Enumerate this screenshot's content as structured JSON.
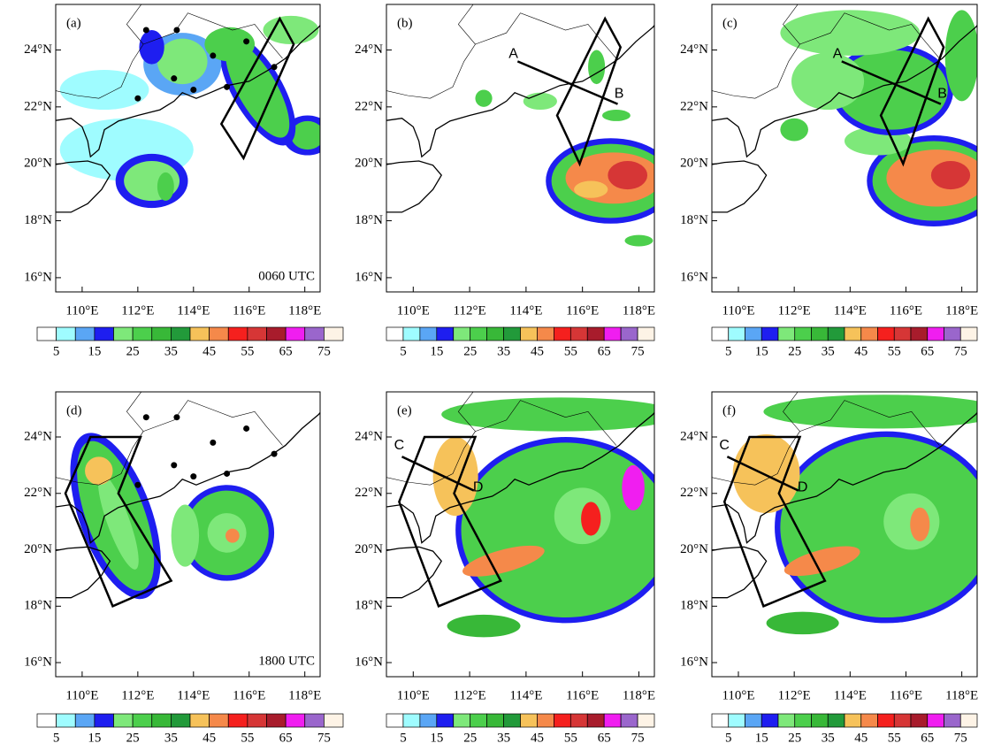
{
  "panels": [
    {
      "label": "(a)",
      "time": "0060 UTC"
    },
    {
      "label": "(b)",
      "section_labels": [
        "A",
        "B"
      ]
    },
    {
      "label": "(c)",
      "section_labels": [
        "A",
        "B"
      ]
    },
    {
      "label": "(d)",
      "time": "1800 UTC"
    },
    {
      "label": "(e)",
      "section_labels": [
        "C",
        "D"
      ]
    },
    {
      "label": "(f)",
      "section_labels": [
        "C",
        "D"
      ]
    }
  ],
  "lon_ticks": [
    {
      "value": 110,
      "label": "110°E"
    },
    {
      "value": 112,
      "label": "112°E"
    },
    {
      "value": 114,
      "label": "114°E"
    },
    {
      "value": 116,
      "label": "116°E"
    },
    {
      "value": 118,
      "label": "118°E"
    }
  ],
  "lat_ticks": [
    {
      "value": 16,
      "label": "16°N"
    },
    {
      "value": 18,
      "label": "18°N"
    },
    {
      "value": 20,
      "label": "20°N"
    },
    {
      "value": 22,
      "label": "22°N"
    },
    {
      "value": 24,
      "label": "24°N"
    }
  ],
  "colorbar": {
    "colors": [
      "#ffffff",
      "#9ffcff",
      "#5aa6f5",
      "#1e1ef0",
      "#7ee87a",
      "#4ccf4c",
      "#38b838",
      "#229a3a",
      "#f6c25a",
      "#f5894a",
      "#f5201e",
      "#d63636",
      "#a81c2c",
      "#f01ef0",
      "#9a66cc",
      "#fdf3e6"
    ],
    "labels": [
      5,
      15,
      25,
      35,
      45,
      55,
      65,
      75
    ]
  }
}
